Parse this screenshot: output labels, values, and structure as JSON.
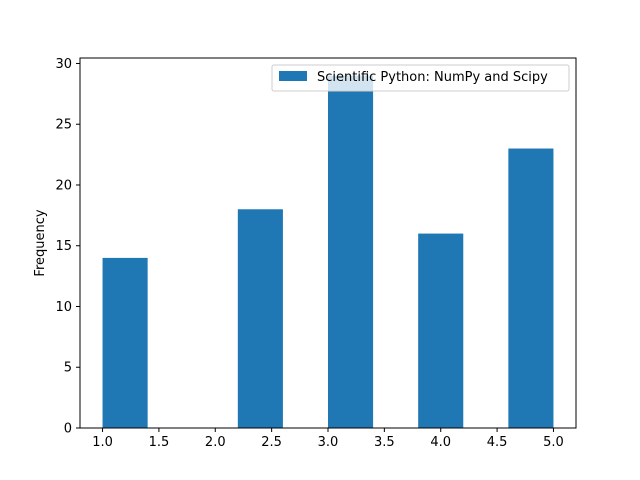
{
  "chart_data": {
    "type": "bar",
    "title": "",
    "xlabel": "",
    "ylabel": "Frequency",
    "xlim": [
      0.8,
      5.2
    ],
    "ylim": [
      0,
      30.45
    ],
    "x_ticks": [
      1.0,
      1.5,
      2.0,
      2.5,
      3.0,
      3.5,
      4.0,
      4.5,
      5.0
    ],
    "x_tick_labels": [
      "1.0",
      "1.5",
      "2.0",
      "2.5",
      "3.0",
      "3.5",
      "4.0",
      "4.5",
      "5.0"
    ],
    "y_ticks": [
      0,
      5,
      10,
      15,
      20,
      25,
      30
    ],
    "y_tick_labels": [
      "0",
      "5",
      "10",
      "15",
      "20",
      "25",
      "30"
    ],
    "grid": false,
    "legend_position": "top-right",
    "bar_width": 0.4,
    "series": [
      {
        "name": "Scientific Python: NumPy and Scipy",
        "color": "#1f77b4",
        "bars": [
          {
            "x_start": 1.0,
            "value": 14
          },
          {
            "x_start": 1.4,
            "value": 0
          },
          {
            "x_start": 1.8,
            "value": 0
          },
          {
            "x_start": 2.2,
            "value": 18
          },
          {
            "x_start": 2.6,
            "value": 0
          },
          {
            "x_start": 3.0,
            "value": 29
          },
          {
            "x_start": 3.4,
            "value": 0
          },
          {
            "x_start": 3.8,
            "value": 16
          },
          {
            "x_start": 4.2,
            "value": 0
          },
          {
            "x_start": 4.6,
            "value": 23
          }
        ]
      }
    ]
  }
}
